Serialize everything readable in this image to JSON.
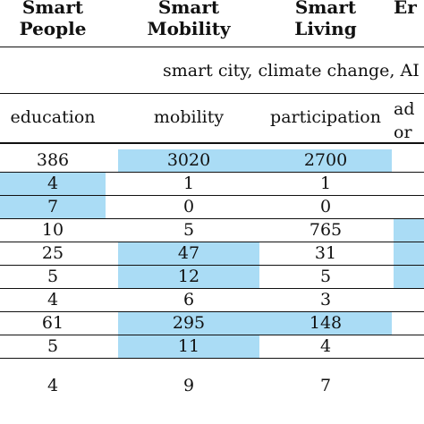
{
  "headers": [
    {
      "line1": "Smart",
      "line2": "People"
    },
    {
      "line1": "Smart",
      "line2": "Mobility"
    },
    {
      "line1": "Smart",
      "line2": "Living"
    },
    {
      "line1": "",
      "line2": "Er"
    }
  ],
  "keywords": "smart city, climate change, AI",
  "subheaders": [
    "education",
    "mobility",
    "participation"
  ],
  "last_subheader": {
    "line1": "ad",
    "line2": "or"
  },
  "highlight_color": "#aadcf5",
  "rows": [
    {
      "values": [
        "386",
        "3020",
        "2700"
      ],
      "highlight": [
        false,
        true,
        true,
        false
      ]
    },
    {
      "values": [
        "4",
        "1",
        "1"
      ],
      "highlight": [
        true,
        false,
        false,
        false
      ]
    },
    {
      "values": [
        "7",
        "0",
        "0"
      ],
      "highlight": [
        true,
        false,
        false,
        false
      ]
    },
    {
      "values": [
        "10",
        "5",
        "765"
      ],
      "highlight": [
        false,
        false,
        false,
        true
      ]
    },
    {
      "values": [
        "25",
        "47",
        "31"
      ],
      "highlight": [
        false,
        true,
        false,
        true
      ]
    },
    {
      "values": [
        "5",
        "12",
        "5"
      ],
      "highlight": [
        false,
        true,
        false,
        true
      ]
    },
    {
      "values": [
        "4",
        "6",
        "3"
      ],
      "highlight": [
        false,
        false,
        false,
        false
      ]
    },
    {
      "values": [
        "61",
        "295",
        "148"
      ],
      "highlight": [
        false,
        true,
        true,
        false
      ]
    },
    {
      "values": [
        "5",
        "11",
        "4"
      ],
      "highlight": [
        false,
        true,
        false,
        false
      ]
    },
    {
      "values": [
        "4",
        "9",
        "7"
      ],
      "highlight": [
        false,
        false,
        false,
        false
      ]
    }
  ]
}
